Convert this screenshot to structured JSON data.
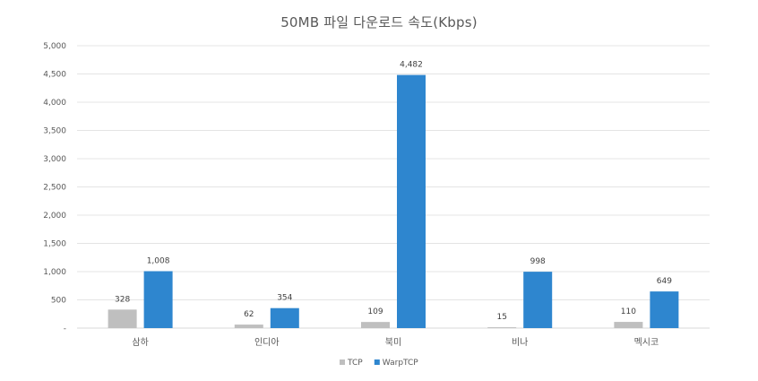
{
  "chart_data": {
    "type": "bar",
    "title": "50MB 파일 다운로드 속도(Kbps)",
    "categories": [
      "삼하",
      "인디아",
      "북미",
      "비나",
      "멕시코"
    ],
    "series": [
      {
        "name": "TCP",
        "values": [
          328,
          62,
          109,
          15,
          110
        ],
        "color": "#bfbfbf"
      },
      {
        "name": "WarpTCP",
        "values": [
          1008,
          354,
          4482,
          998,
          649
        ],
        "color": "#2e86cf"
      }
    ],
    "ylim": [
      0,
      5000
    ],
    "yticks": [
      0,
      500,
      1000,
      1500,
      2000,
      2500,
      3000,
      3500,
      4000,
      4500,
      5000
    ],
    "ytick_labels": [
      "-",
      "500",
      "1,000",
      "1,500",
      "2,000",
      "2,500",
      "3,000",
      "3,500",
      "4,000",
      "4,500",
      "5,000"
    ],
    "data_labels": [
      [
        "328",
        "62",
        "109",
        "15",
        "110"
      ],
      [
        "1,008",
        "354",
        "4,482",
        "998",
        "649"
      ]
    ],
    "xlabel": "",
    "ylabel": "",
    "grid": true,
    "legend_position": "bottom"
  }
}
